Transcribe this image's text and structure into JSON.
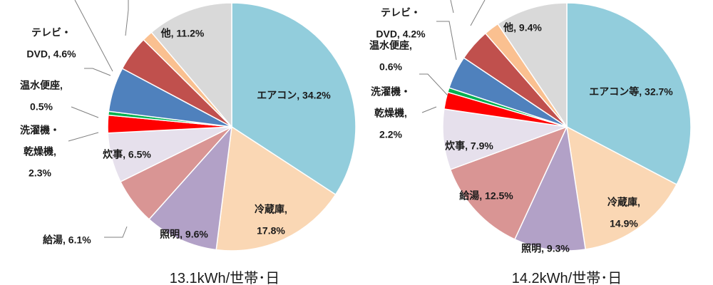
{
  "chart_data": [
    {
      "type": "pie",
      "total_label": "13.1kWh/世帯･日",
      "slices": [
        {
          "name": "エアコン",
          "value": 34.2,
          "label_lines": [
            "エアコン, 34.2%"
          ],
          "color": "#92cddc"
        },
        {
          "name": "冷蔵庫",
          "value": 17.8,
          "label_lines": [
            "冷蔵庫,",
            "17.8%"
          ],
          "color": "#fad7b4"
        },
        {
          "name": "照明",
          "value": 9.6,
          "label_lines": [
            "照明, 9.6%"
          ],
          "color": "#b2a1c7"
        },
        {
          "name": "給湯",
          "value": 6.1,
          "label_lines": [
            "給湯, 6.1%"
          ],
          "color": "#d99594"
        },
        {
          "name": "炊事",
          "value": 6.5,
          "label_lines": [
            "炊事, 6.5%"
          ],
          "color": "#e6e0ec"
        },
        {
          "name": "洗濯機・乾燥機",
          "value": 2.3,
          "label_lines": [
            "洗濯機・",
            "乾燥機,",
            "2.3%"
          ],
          "color": "#ff0000"
        },
        {
          "name": "温水便座",
          "value": 0.5,
          "label_lines": [
            "温水便座,",
            "0.5%"
          ],
          "color": "#00b050"
        },
        {
          "name": "",
          "value": 5.8,
          "label_lines": [],
          "color": "#4f81bd"
        },
        {
          "name": "テレビ・DVD",
          "value": 4.6,
          "label_lines": [
            "テレビ・",
            "DVD, 4.6%"
          ],
          "color": "#c0504d"
        },
        {
          "name": "",
          "value": 1.4,
          "label_lines": [],
          "color": "#fac090"
        },
        {
          "name": "他",
          "value": 11.2,
          "label_lines": [
            "他, 11.2%"
          ],
          "color": "#d9d9d9"
        }
      ]
    },
    {
      "type": "pie",
      "total_label": "14.2kWh/世帯･日",
      "slices": [
        {
          "name": "エアコン等",
          "value": 32.7,
          "label_lines": [
            "エアコン等, 32.7%"
          ],
          "color": "#92cddc"
        },
        {
          "name": "冷蔵庫",
          "value": 14.9,
          "label_lines": [
            "冷蔵庫,",
            "14.9%"
          ],
          "color": "#fad7b4"
        },
        {
          "name": "照明",
          "value": 9.3,
          "label_lines": [
            "照明, 9.3%"
          ],
          "color": "#b2a1c7"
        },
        {
          "name": "給湯",
          "value": 12.5,
          "label_lines": [
            "給湯, 12.5%"
          ],
          "color": "#d99594"
        },
        {
          "name": "炊事",
          "value": 7.9,
          "label_lines": [
            "炊事, 7.9%"
          ],
          "color": "#e6e0ec"
        },
        {
          "name": "洗濯機・乾燥機",
          "value": 2.2,
          "label_lines": [
            "洗濯機・",
            "乾燥機,",
            "2.2%"
          ],
          "color": "#ff0000"
        },
        {
          "name": "温水便座",
          "value": 0.6,
          "label_lines": [
            "温水便座,",
            "0.6%"
          ],
          "color": "#00b050"
        },
        {
          "name": "",
          "value": 4.3,
          "label_lines": [],
          "color": "#4f81bd"
        },
        {
          "name": "テレビ・DVD",
          "value": 4.2,
          "label_lines": [
            "テレビ・",
            "DVD, 4.2%"
          ],
          "color": "#c0504d"
        },
        {
          "name": "",
          "value": 2.0,
          "label_lines": [],
          "color": "#fac090"
        },
        {
          "name": "他",
          "value": 9.4,
          "label_lines": [
            "他, 9.4%"
          ],
          "color": "#d9d9d9"
        }
      ]
    }
  ]
}
